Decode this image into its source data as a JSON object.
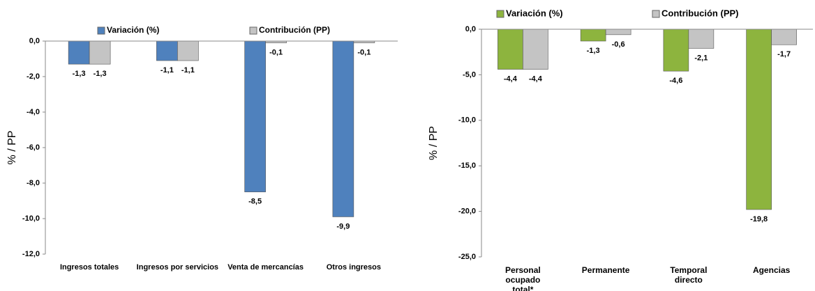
{
  "chart_data": [
    {
      "type": "bar",
      "ylabel": "% / PP",
      "categories": [
        "Ingresos totales",
        "Ingresos por servicios",
        "Venta de mercancías",
        "Otros ingresos"
      ],
      "series": [
        {
          "name": "Variación (%)",
          "color": "#4f81bd",
          "values": [
            -1.3,
            -1.1,
            -8.5,
            -9.9
          ],
          "value_labels": [
            "-1,3",
            "-1,1",
            "-8,5",
            "-9,9"
          ]
        },
        {
          "name": "Contribución (PP)",
          "color": "#c4c4c4",
          "values": [
            -1.3,
            -1.1,
            -0.1,
            -0.1
          ],
          "value_labels": [
            "-1,3",
            "-1,1",
            "-0,1",
            "-0,1"
          ]
        }
      ],
      "ylim": [
        -12,
        0
      ],
      "yticks": [
        {
          "value": 0,
          "label": "0,0"
        },
        {
          "value": -2,
          "label": "-2,0"
        },
        {
          "value": -4,
          "label": "-4,0"
        },
        {
          "value": -6,
          "label": "-6,0"
        },
        {
          "value": -8,
          "label": "-8,0"
        },
        {
          "value": -10,
          "label": "-10,0"
        },
        {
          "value": -12,
          "label": "-12,0"
        }
      ],
      "legend": "top"
    },
    {
      "type": "bar",
      "ylabel": "% / PP",
      "categories": [
        "Personal ocupado total*",
        "Permanente",
        "Temporal directo",
        "Agencias"
      ],
      "series": [
        {
          "name": "Variación (%)",
          "color": "#8db43e",
          "values": [
            -4.4,
            -1.3,
            -4.6,
            -19.8
          ],
          "value_labels": [
            "-4,4",
            "-1,3",
            "-4,6",
            "-19,8"
          ]
        },
        {
          "name": "Contribución (PP)",
          "color": "#c4c4c4",
          "values": [
            -4.4,
            -0.6,
            -2.1,
            -1.7
          ],
          "value_labels": [
            "-4,4",
            "-0,6",
            "-2,1",
            "-1,7"
          ]
        }
      ],
      "ylim": [
        -25,
        0
      ],
      "yticks": [
        {
          "value": 0,
          "label": "0,0"
        },
        {
          "value": -5,
          "label": "-5,0"
        },
        {
          "value": -10,
          "label": "-10,0"
        },
        {
          "value": -15,
          "label": "-15,0"
        },
        {
          "value": -20,
          "label": "-20,0"
        },
        {
          "value": -25,
          "label": "-25,0"
        }
      ],
      "legend": "top"
    }
  ]
}
